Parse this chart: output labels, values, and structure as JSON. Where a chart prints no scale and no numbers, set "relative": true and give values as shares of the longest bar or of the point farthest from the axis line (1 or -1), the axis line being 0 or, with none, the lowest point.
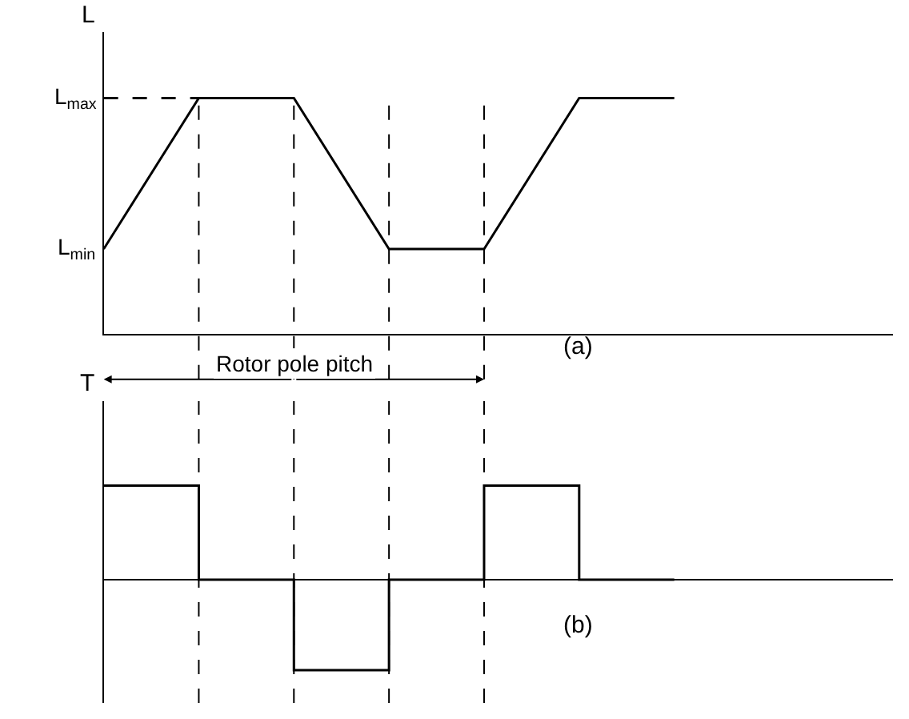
{
  "chart_data": [
    {
      "type": "line",
      "ylabel": "L",
      "relative": true,
      "categories": [
        null,
        null,
        null,
        null,
        null,
        null,
        null
      ],
      "series": [
        {
          "color": "#000000",
          "values": [
            0.36,
            1,
            1,
            0.36,
            0.36,
            1,
            1
          ]
        },
        {
          "color": "#000000",
          "values": [
            1,
            1,
            null,
            null,
            null,
            null,
            null
          ],
          "line_style": "dashed"
        }
      ],
      "annotations": [
        "L$_{min}$",
        "L$_{max}$",
        "Rotor pole pitch",
        "(a)"
      ],
      "grid": "x"
    },
    {
      "type": "step",
      "ylabel": "T",
      "relative": true,
      "categories": [
        null,
        null,
        null,
        null,
        null,
        null,
        null
      ],
      "series": [
        {
          "color": "#000000",
          "values": [
            1,
            0,
            -0.96,
            0,
            1,
            0,
            0
          ]
        }
      ],
      "annotations": [
        "(b)"
      ],
      "grid": "x"
    }
  ]
}
